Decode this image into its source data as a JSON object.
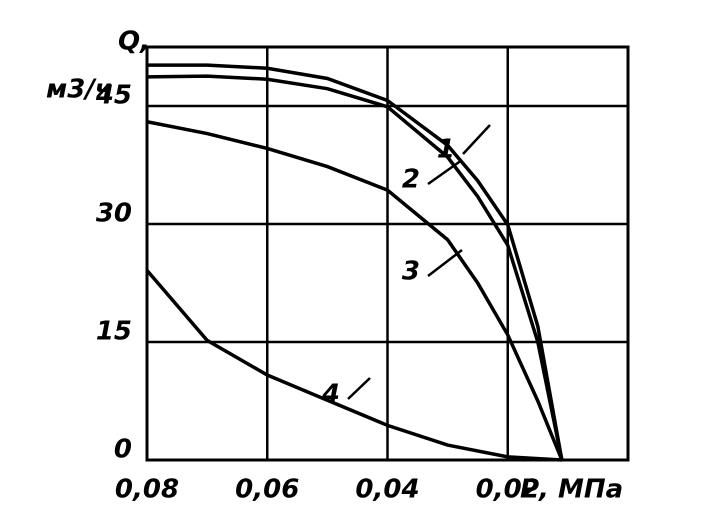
{
  "chart_data": {
    "type": "line",
    "y_label_1": "Q,",
    "y_label_2": "м3/ч",
    "x_label": "Р, МПа",
    "xlim": [
      0.08,
      0
    ],
    "ylim": [
      0,
      52.5
    ],
    "xticks": [
      {
        "value": 0.08,
        "label": "0,08"
      },
      {
        "value": 0.06,
        "label": "0,06"
      },
      {
        "value": 0.04,
        "label": "0,04"
      },
      {
        "value": 0.02,
        "label": "0,02"
      }
    ],
    "yticks": [
      0,
      15,
      30,
      45
    ],
    "grid": true,
    "series": [
      {
        "name": "1",
        "color": "#000000",
        "x": [
          0.08,
          0.07,
          0.06,
          0.05,
          0.04,
          0.03,
          0.025,
          0.02,
          0.015,
          0.011
        ],
        "values": [
          50.2,
          50.2,
          49.8,
          48.5,
          45.7,
          40,
          35.5,
          29.9,
          17,
          0
        ]
      },
      {
        "name": "2",
        "color": "#000000",
        "x": [
          0.08,
          0.07,
          0.06,
          0.05,
          0.04,
          0.03,
          0.025,
          0.02,
          0.015,
          0.011
        ],
        "values": [
          48.7,
          48.8,
          48.4,
          47.2,
          44.9,
          38.5,
          33.5,
          27.3,
          15,
          0
        ]
      },
      {
        "name": "3",
        "color": "#000000",
        "x": [
          0.08,
          0.07,
          0.06,
          0.05,
          0.04,
          0.03,
          0.025,
          0.02,
          0.015,
          0.011
        ],
        "values": [
          43,
          41.5,
          39.6,
          37.3,
          34.3,
          28,
          22.5,
          15.9,
          7.5,
          0
        ]
      },
      {
        "name": "4",
        "color": "#000000",
        "x": [
          0.08,
          0.07,
          0.06,
          0.05,
          0.04,
          0.03,
          0.02,
          0.011
        ],
        "values": [
          24.1,
          15.2,
          10.8,
          7.6,
          4.4,
          1.9,
          0.4,
          0
        ]
      }
    ]
  }
}
